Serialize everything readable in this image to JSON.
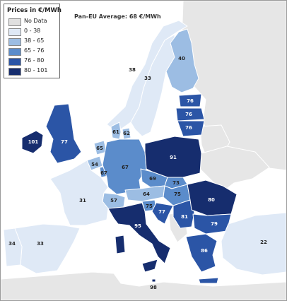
{
  "legend": {
    "title": "Prices in €/MWh",
    "items": [
      {
        "label": "No Data",
        "color": "#e0e0e0"
      },
      {
        "label": "0 - 38",
        "color": "#dfe9f6"
      },
      {
        "label": "38 - 65",
        "color": "#9cbde3"
      },
      {
        "label": "65 - 76",
        "color": "#5b8ccb"
      },
      {
        "label": "76 - 80",
        "color": "#2b55a6"
      },
      {
        "label": "80 - 101",
        "color": "#162d6e"
      }
    ]
  },
  "average_label": "Pan-EU Average: 68 €/MWh",
  "colors": {
    "sea": "#ffffff",
    "outside": "#e6e6e6",
    "border": "#ffffff",
    "label_dark": "#222222",
    "label_light": "#ffffff"
  },
  "countries": [
    {
      "id": "ireland",
      "value": "101",
      "class": "80 - 101"
    },
    {
      "id": "great-britain",
      "value": "77",
      "class": "76 - 80"
    },
    {
      "id": "norway",
      "value": "38",
      "class": "0 - 38"
    },
    {
      "id": "sweden",
      "value": "33",
      "class": "0 - 38"
    },
    {
      "id": "finland",
      "value": "40",
      "class": "38 - 65"
    },
    {
      "id": "estonia",
      "value": "76",
      "class": "76 - 80"
    },
    {
      "id": "latvia",
      "value": "76",
      "class": "76 - 80"
    },
    {
      "id": "lithuania",
      "value": "76",
      "class": "76 - 80"
    },
    {
      "id": "denmark-west",
      "value": "61",
      "class": "38 - 65"
    },
    {
      "id": "denmark-east",
      "value": "62",
      "class": "38 - 65"
    },
    {
      "id": "netherlands",
      "value": "65",
      "class": "38 - 65"
    },
    {
      "id": "belgium",
      "value": "54",
      "class": "38 - 65"
    },
    {
      "id": "luxembourg",
      "value": "67",
      "class": "65 - 76"
    },
    {
      "id": "germany",
      "value": "67",
      "class": "65 - 76"
    },
    {
      "id": "poland",
      "value": "91",
      "class": "80 - 101"
    },
    {
      "id": "czechia",
      "value": "69",
      "class": "65 - 76"
    },
    {
      "id": "slovakia",
      "value": "73",
      "class": "65 - 76"
    },
    {
      "id": "austria",
      "value": "64",
      "class": "38 - 65"
    },
    {
      "id": "hungary",
      "value": "75",
      "class": "65 - 76"
    },
    {
      "id": "slovenia",
      "value": "75",
      "class": "65 - 76"
    },
    {
      "id": "croatia",
      "value": "77",
      "class": "76 - 80"
    },
    {
      "id": "switzerland",
      "value": "57",
      "class": "38 - 65"
    },
    {
      "id": "france",
      "value": "31",
      "class": "0 - 38"
    },
    {
      "id": "spain",
      "value": "33",
      "class": "0 - 38"
    },
    {
      "id": "portugal",
      "value": "34",
      "class": "0 - 38"
    },
    {
      "id": "italy",
      "value": "95",
      "class": "80 - 101"
    },
    {
      "id": "serbia",
      "value": "81",
      "class": "80 - 101"
    },
    {
      "id": "romania",
      "value": "80",
      "class": "76 - 80"
    },
    {
      "id": "bulgaria",
      "value": "79",
      "class": "76 - 80"
    },
    {
      "id": "greece",
      "value": "86",
      "class": "80 - 101"
    },
    {
      "id": "turkey",
      "value": "22",
      "class": "0 - 38"
    },
    {
      "id": "malta",
      "value": "98",
      "class": "80 - 101"
    }
  ]
}
